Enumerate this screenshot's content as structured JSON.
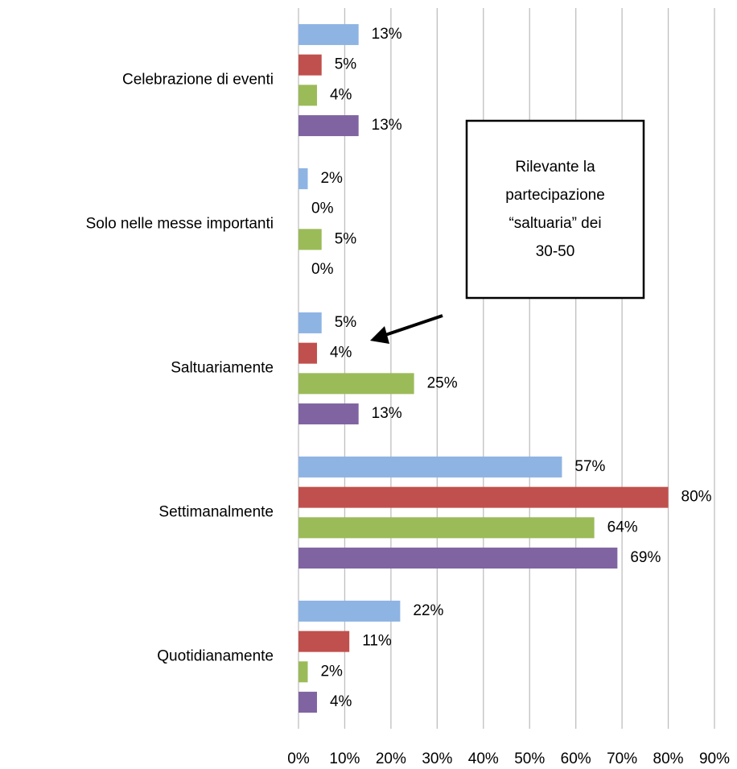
{
  "chart_data": {
    "type": "hbar",
    "categories": [
      "Celebrazione di eventi",
      "Solo nelle messe importanti",
      "Saltuariamente",
      "Settimanalmente",
      "Quotidianamente"
    ],
    "series": [
      {
        "color": "#8eb4e3",
        "values": [
          13,
          2,
          5,
          57,
          22
        ],
        "value_labels": [
          "13%",
          "2%",
          "5%",
          "57%",
          "22%"
        ]
      },
      {
        "color": "#c0504d",
        "values": [
          5,
          0,
          4,
          80,
          11
        ],
        "value_labels": [
          "5%",
          "0%",
          "4%",
          "80%",
          "11%"
        ]
      },
      {
        "color": "#9bbb59",
        "values": [
          4,
          5,
          25,
          64,
          2
        ],
        "value_labels": [
          "4%",
          "5%",
          "25%",
          "64%",
          "2%"
        ]
      },
      {
        "color": "#8064a2",
        "values": [
          13,
          0,
          13,
          69,
          4
        ],
        "value_labels": [
          "13%",
          "0%",
          "13%",
          "69%",
          "4%"
        ]
      }
    ],
    "xlim": [
      0,
      90
    ],
    "xticks": [
      {
        "value": 0,
        "label": "0%"
      },
      {
        "value": 10,
        "label": "10%"
      },
      {
        "value": 20,
        "label": "20%"
      },
      {
        "value": 30,
        "label": "30%"
      },
      {
        "value": 40,
        "label": "40%"
      },
      {
        "value": 50,
        "label": "50%"
      },
      {
        "value": 60,
        "label": "60%"
      },
      {
        "value": 70,
        "label": "70%"
      },
      {
        "value": 80,
        "label": "80%"
      },
      {
        "value": 90,
        "label": "90%"
      }
    ],
    "grid": true,
    "annotation": [
      "Rilevante la",
      "partecipazione",
      "“saltuaria” dei",
      "30-50"
    ]
  }
}
